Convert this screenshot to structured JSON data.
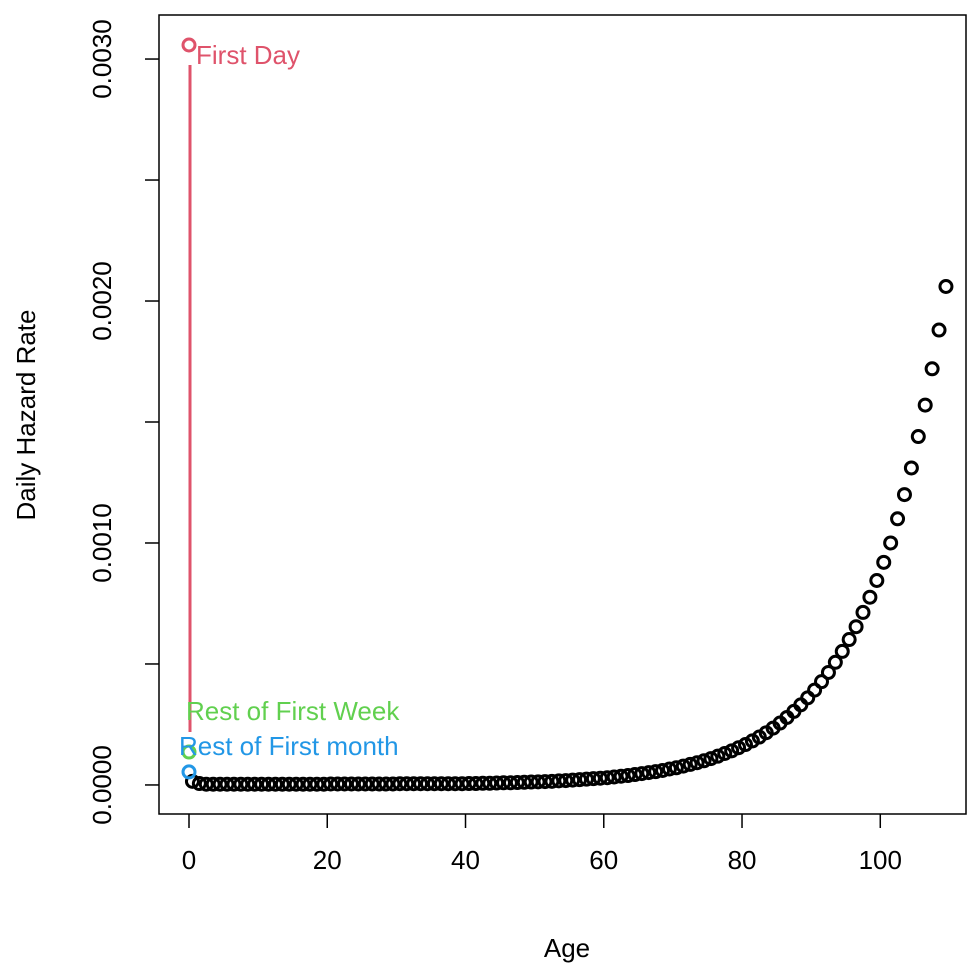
{
  "chart_data": {
    "type": "scatter",
    "x_label": "Age",
    "y_label": "Daily Hazard Rate",
    "xlim": [
      -4.34,
      112.4
    ],
    "ylim": [
      -0.00012,
      0.003182
    ],
    "xticks": [
      0,
      20,
      40,
      60,
      80,
      100
    ],
    "yticks": [
      {
        "value": 0,
        "label": "0.0000"
      },
      {
        "value": 0.0005,
        "label": null
      },
      {
        "value": 0.001,
        "label": "0.0010"
      },
      {
        "value": 0.0015,
        "label": null
      },
      {
        "value": 0.002,
        "label": "0.0020"
      },
      {
        "value": 0.0025,
        "label": null
      },
      {
        "value": 0.003,
        "label": "0.0030"
      }
    ],
    "series": [
      {
        "color": "#000000",
        "x": [
          0.5,
          1.5,
          2.5,
          3.5,
          4.5,
          5.5,
          6.5,
          7.5,
          8.5,
          9.5,
          10.5,
          11.5,
          12.5,
          13.5,
          14.5,
          15.5,
          16.5,
          17.5,
          18.5,
          19.5,
          20.5,
          21.5,
          22.5,
          23.5,
          24.5,
          25.5,
          26.5,
          27.5,
          28.5,
          29.5,
          30.5,
          31.5,
          32.5,
          33.5,
          34.5,
          35.5,
          36.5,
          37.5,
          38.5,
          39.5,
          40.5,
          41.5,
          42.5,
          43.5,
          44.5,
          45.5,
          46.5,
          47.5,
          48.5,
          49.5,
          50.5,
          51.5,
          52.5,
          53.5,
          54.5,
          55.5,
          56.5,
          57.5,
          58.5,
          59.5,
          60.5,
          61.5,
          62.5,
          63.5,
          64.5,
          65.5,
          66.5,
          67.5,
          68.5,
          69.5,
          70.5,
          71.5,
          72.5,
          73.5,
          74.5,
          75.5,
          76.5,
          77.5,
          78.5,
          79.5,
          80.5,
          81.5,
          82.5,
          83.5,
          84.5,
          85.5,
          86.5,
          87.5,
          88.5,
          89.5,
          90.5,
          91.5,
          92.5,
          93.5,
          94.5,
          95.5,
          96.5,
          97.5,
          98.5,
          99.5,
          100.5,
          101.5,
          102.5,
          103.5,
          104.5,
          105.5,
          106.5,
          107.5,
          108.5,
          109.5
        ],
        "values": [
          1.5e-05,
          6e-06,
          3e-06,
          3e-06,
          3e-06,
          3e-06,
          3e-06,
          3e-06,
          3e-06,
          3e-06,
          3e-06,
          3e-06,
          3e-06,
          3e-06,
          3e-06,
          3e-06,
          3e-06,
          3e-06,
          3e-06,
          3e-06,
          4e-06,
          4e-06,
          4e-06,
          4e-06,
          4e-06,
          4e-06,
          4e-06,
          4e-06,
          4e-06,
          4e-06,
          5e-06,
          5e-06,
          5e-06,
          5e-06,
          5e-06,
          5e-06,
          5e-06,
          5e-06,
          5e-06,
          5e-06,
          6e-06,
          6e-06,
          7e-06,
          7e-06,
          8e-06,
          9e-06,
          9e-06,
          1e-05,
          1.1e-05,
          1.2e-05,
          1.3e-05,
          1.4e-05,
          1.5e-05,
          1.7e-05,
          1.8e-05,
          2e-05,
          2.2e-05,
          2.4e-05,
          2.6e-05,
          2.8e-05,
          3e-05,
          3.3e-05,
          3.6e-05,
          3.9e-05,
          4.3e-05,
          4.7e-05,
          5.1e-05,
          5.5e-05,
          6e-05,
          6.6e-05,
          7.1e-05,
          7.8e-05,
          8.5e-05,
          9.2e-05,
          0.0001,
          0.000109,
          0.000119,
          0.00013,
          0.000141,
          0.000154,
          0.000167,
          0.000182,
          0.000198,
          0.000216,
          0.000235,
          0.000256,
          0.000279,
          0.000304,
          0.000331,
          0.00036,
          0.000392,
          0.000427,
          0.000465,
          0.000507,
          0.000552,
          0.000601,
          0.000654,
          0.000713,
          0.000776,
          0.000845,
          0.00092,
          0.001,
          0.0011,
          0.0012,
          0.00131,
          0.00144,
          0.00157,
          0.00172,
          0.00188,
          0.00206
        ]
      },
      {
        "name": "First Day",
        "color": "#DF536B",
        "x": [
          0
        ],
        "values": [
          0.003058
        ]
      },
      {
        "name": "Rest of First Week",
        "color": "#61D04F",
        "x": [
          0
        ],
        "values": [
          0.000136
        ]
      },
      {
        "name": "Rest of First month",
        "color": "#2297E6",
        "x": [
          0
        ],
        "values": [
          5.4e-05
        ]
      }
    ]
  }
}
